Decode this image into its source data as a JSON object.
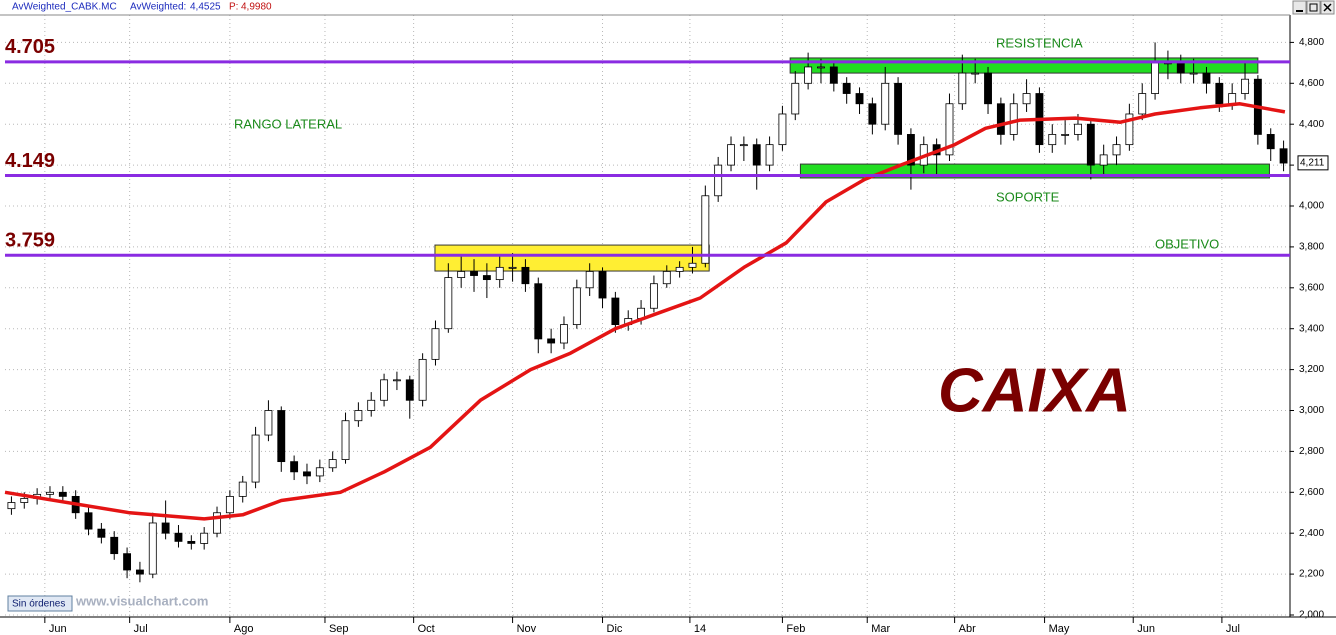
{
  "header": {
    "title": "AvWeighted_CABK.MC",
    "indicator": "AvWeighted:",
    "indicator_value": "4,4525",
    "p_label": "P:",
    "p_value": "4,9980"
  },
  "chart_data": {
    "type": "candlestick",
    "title": "AvWeighted_CABK.MC",
    "color_up": "#ffffff",
    "color_down": "#000000",
    "ohlc": [
      [
        2.52,
        2.58,
        2.49,
        2.55
      ],
      [
        2.55,
        2.6,
        2.52,
        2.57
      ],
      [
        2.57,
        2.62,
        2.54,
        2.59
      ],
      [
        2.59,
        2.63,
        2.56,
        2.6
      ],
      [
        2.6,
        2.63,
        2.55,
        2.58
      ],
      [
        2.58,
        2.61,
        2.47,
        2.5
      ],
      [
        2.5,
        2.53,
        2.39,
        2.42
      ],
      [
        2.42,
        2.45,
        2.35,
        2.38
      ],
      [
        2.38,
        2.41,
        2.27,
        2.3
      ],
      [
        2.3,
        2.33,
        2.18,
        2.22
      ],
      [
        2.22,
        2.26,
        2.16,
        2.2
      ],
      [
        2.2,
        2.5,
        2.18,
        2.45
      ],
      [
        2.45,
        2.56,
        2.37,
        2.4
      ],
      [
        2.4,
        2.44,
        2.33,
        2.36
      ],
      [
        2.36,
        2.39,
        2.32,
        2.35
      ],
      [
        2.35,
        2.43,
        2.32,
        2.4
      ],
      [
        2.4,
        2.53,
        2.38,
        2.5
      ],
      [
        2.5,
        2.61,
        2.47,
        2.58
      ],
      [
        2.58,
        2.68,
        2.55,
        2.65
      ],
      [
        2.65,
        2.92,
        2.62,
        2.88
      ],
      [
        2.88,
        3.05,
        2.85,
        3.0
      ],
      [
        3.0,
        3.02,
        2.7,
        2.75
      ],
      [
        2.75,
        2.78,
        2.66,
        2.7
      ],
      [
        2.7,
        2.74,
        2.64,
        2.68
      ],
      [
        2.68,
        2.76,
        2.65,
        2.72
      ],
      [
        2.72,
        2.8,
        2.7,
        2.76
      ],
      [
        2.76,
        2.99,
        2.74,
        2.95
      ],
      [
        2.95,
        3.04,
        2.92,
        3.0
      ],
      [
        3.0,
        3.09,
        2.97,
        3.05
      ],
      [
        3.05,
        3.18,
        3.02,
        3.15
      ],
      [
        3.15,
        3.19,
        3.1,
        3.15
      ],
      [
        3.15,
        3.17,
        2.96,
        3.05
      ],
      [
        3.05,
        3.28,
        3.02,
        3.25
      ],
      [
        3.25,
        3.44,
        3.22,
        3.4
      ],
      [
        3.4,
        3.72,
        3.38,
        3.65
      ],
      [
        3.65,
        3.76,
        3.6,
        3.68
      ],
      [
        3.68,
        3.74,
        3.58,
        3.66
      ],
      [
        3.66,
        3.72,
        3.55,
        3.64
      ],
      [
        3.64,
        3.76,
        3.6,
        3.7
      ],
      [
        3.7,
        3.77,
        3.63,
        3.7
      ],
      [
        3.7,
        3.74,
        3.58,
        3.62
      ],
      [
        3.62,
        3.65,
        3.28,
        3.35
      ],
      [
        3.35,
        3.4,
        3.28,
        3.33
      ],
      [
        3.33,
        3.46,
        3.3,
        3.42
      ],
      [
        3.42,
        3.64,
        3.4,
        3.6
      ],
      [
        3.6,
        3.72,
        3.56,
        3.68
      ],
      [
        3.68,
        3.7,
        3.5,
        3.55
      ],
      [
        3.55,
        3.58,
        3.38,
        3.42
      ],
      [
        3.42,
        3.49,
        3.39,
        3.45
      ],
      [
        3.45,
        3.54,
        3.42,
        3.5
      ],
      [
        3.5,
        3.66,
        3.48,
        3.62
      ],
      [
        3.62,
        3.71,
        3.6,
        3.68
      ],
      [
        3.68,
        3.73,
        3.65,
        3.7
      ],
      [
        3.7,
        3.8,
        3.67,
        3.72
      ],
      [
        3.72,
        4.1,
        3.7,
        4.05
      ],
      [
        4.05,
        4.24,
        4.02,
        4.2
      ],
      [
        4.2,
        4.34,
        4.17,
        4.3
      ],
      [
        4.3,
        4.34,
        4.22,
        4.3
      ],
      [
        4.3,
        4.33,
        4.08,
        4.2
      ],
      [
        4.2,
        4.34,
        4.17,
        4.3
      ],
      [
        4.3,
        4.49,
        4.27,
        4.45
      ],
      [
        4.45,
        4.66,
        4.42,
        4.6
      ],
      [
        4.6,
        4.75,
        4.57,
        4.68
      ],
      [
        4.68,
        4.72,
        4.6,
        4.68
      ],
      [
        4.68,
        4.7,
        4.56,
        4.6
      ],
      [
        4.6,
        4.63,
        4.5,
        4.55
      ],
      [
        4.55,
        4.58,
        4.45,
        4.5
      ],
      [
        4.5,
        4.53,
        4.35,
        4.4
      ],
      [
        4.4,
        4.68,
        4.37,
        4.6
      ],
      [
        4.6,
        4.63,
        4.3,
        4.35
      ],
      [
        4.35,
        4.38,
        4.08,
        4.2
      ],
      [
        4.2,
        4.34,
        4.16,
        4.3
      ],
      [
        4.3,
        4.33,
        4.15,
        4.25
      ],
      [
        4.25,
        4.55,
        4.22,
        4.5
      ],
      [
        4.5,
        4.74,
        4.47,
        4.65
      ],
      [
        4.65,
        4.72,
        4.6,
        4.65
      ],
      [
        4.65,
        4.68,
        4.45,
        4.5
      ],
      [
        4.5,
        4.53,
        4.3,
        4.35
      ],
      [
        4.35,
        4.55,
        4.32,
        4.5
      ],
      [
        4.5,
        4.62,
        4.46,
        4.55
      ],
      [
        4.55,
        4.58,
        4.26,
        4.3
      ],
      [
        4.3,
        4.4,
        4.26,
        4.35
      ],
      [
        4.35,
        4.42,
        4.3,
        4.35
      ],
      [
        4.35,
        4.45,
        4.32,
        4.4
      ],
      [
        4.4,
        4.43,
        4.13,
        4.2
      ],
      [
        4.2,
        4.3,
        4.15,
        4.25
      ],
      [
        4.25,
        4.34,
        4.2,
        4.3
      ],
      [
        4.3,
        4.5,
        4.27,
        4.45
      ],
      [
        4.45,
        4.6,
        4.42,
        4.55
      ],
      [
        4.55,
        4.8,
        4.52,
        4.7
      ],
      [
        4.7,
        4.76,
        4.62,
        4.7
      ],
      [
        4.7,
        4.74,
        4.6,
        4.65
      ],
      [
        4.65,
        4.72,
        4.6,
        4.65
      ],
      [
        4.65,
        4.68,
        4.55,
        4.6
      ],
      [
        4.6,
        4.63,
        4.46,
        4.5
      ],
      [
        4.5,
        4.6,
        4.47,
        4.55
      ],
      [
        4.55,
        4.7,
        4.52,
        4.62
      ],
      [
        4.62,
        4.64,
        4.3,
        4.35
      ],
      [
        4.35,
        4.38,
        4.22,
        4.28
      ],
      [
        4.28,
        4.32,
        4.17,
        4.21
      ]
    ],
    "moving_average": {
      "color": "#e41414",
      "x": [
        -0.5,
        9.2,
        15,
        18,
        21,
        25.6,
        29,
        32.6,
        36.5,
        40.4,
        43.5,
        47,
        50.5,
        53.6,
        57,
        60.3,
        63.4,
        66.4,
        69.2,
        73.4,
        75.8,
        78.5,
        82.8,
        86.3,
        89,
        92.5,
        95.6,
        99.1
      ],
      "values": [
        2.6,
        2.5,
        2.47,
        2.49,
        2.56,
        2.6,
        2.7,
        2.82,
        3.05,
        3.2,
        3.28,
        3.4,
        3.48,
        3.55,
        3.7,
        3.82,
        4.02,
        4.13,
        4.2,
        4.3,
        4.38,
        4.42,
        4.43,
        4.41,
        4.45,
        4.48,
        4.5,
        4.46
      ]
    },
    "xlim": [
      -0.5,
      99.5
    ],
    "xticks": [
      {
        "value": 2.6,
        "label": "Jun"
      },
      {
        "value": 9.2,
        "label": "Jul"
      },
      {
        "value": 17.0,
        "label": "Ago"
      },
      {
        "value": 24.4,
        "label": "Sep"
      },
      {
        "value": 31.3,
        "label": "Oct"
      },
      {
        "value": 39.0,
        "label": "Nov"
      },
      {
        "value": 46.0,
        "label": "Dic"
      },
      {
        "value": 52.8,
        "label": "14"
      },
      {
        "value": 60.0,
        "label": "Feb"
      },
      {
        "value": 66.6,
        "label": "Mar"
      },
      {
        "value": 73.4,
        "label": "Abr"
      },
      {
        "value": 80.4,
        "label": "May"
      },
      {
        "value": 87.3,
        "label": "Jun"
      },
      {
        "value": 94.2,
        "label": "Jul"
      }
    ],
    "ylim": [
      2.0,
      4.934
    ],
    "yticks": [
      {
        "value": 2.0,
        "label": "2,000"
      },
      {
        "value": 2.2,
        "label": "2,200"
      },
      {
        "value": 2.4,
        "label": "2,400"
      },
      {
        "value": 2.6,
        "label": "2,600"
      },
      {
        "value": 2.8,
        "label": "2,800"
      },
      {
        "value": 3.0,
        "label": "3,000"
      },
      {
        "value": 3.2,
        "label": "3,200"
      },
      {
        "value": 3.4,
        "label": "3,400"
      },
      {
        "value": 3.6,
        "label": "3,600"
      },
      {
        "value": 3.8,
        "label": "3,800"
      },
      {
        "value": 4.0,
        "label": "4,000"
      },
      {
        "value": 4.2,
        "label": "4,200"
      },
      {
        "value": 4.4,
        "label": "4,400"
      },
      {
        "value": 4.6,
        "label": "4,600"
      },
      {
        "value": 4.8,
        "label": "4,800"
      }
    ],
    "grid": true,
    "last_price": {
      "value": 4.211,
      "label": "4,211"
    },
    "levels": [
      4.705,
      4.149,
      3.759
    ],
    "level_color": "#8a2be2",
    "zones": [
      {
        "xlim": [
          60.6,
          97.0
        ],
        "ylim": [
          4.65,
          4.724
        ],
        "color": "#22dd22"
      },
      {
        "xlim": [
          61.4,
          97.9
        ],
        "ylim": [
          4.137,
          4.205
        ],
        "color": "#22dd22"
      },
      {
        "xlim": [
          32.96,
          54.3
        ],
        "ylim": [
          3.682,
          3.809
        ],
        "color": "#ffee33"
      }
    ],
    "annotations": [
      "RANGO LATERAL",
      "RESISTENCIA",
      "SOPORTE",
      "OBJETIVO",
      "CAIXA"
    ]
  },
  "footer": {
    "status": "Sin órdenes",
    "site": "www.visualchart.com"
  }
}
